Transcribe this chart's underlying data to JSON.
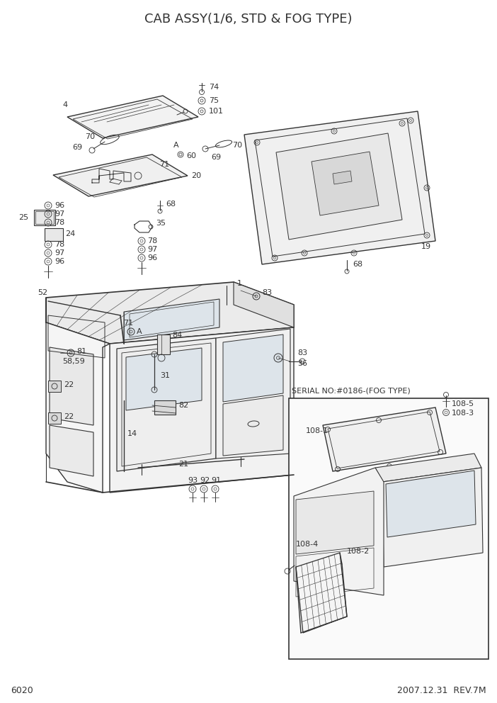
{
  "title": "CAB ASSY(1/6, STD & FOG TYPE)",
  "page_number": "6020",
  "date_rev": "2007.12.31  REV.7M",
  "bg_color": "#ffffff",
  "line_color": "#333333",
  "title_fontsize": 13,
  "label_fontsize": 8,
  "footer_fontsize": 9
}
